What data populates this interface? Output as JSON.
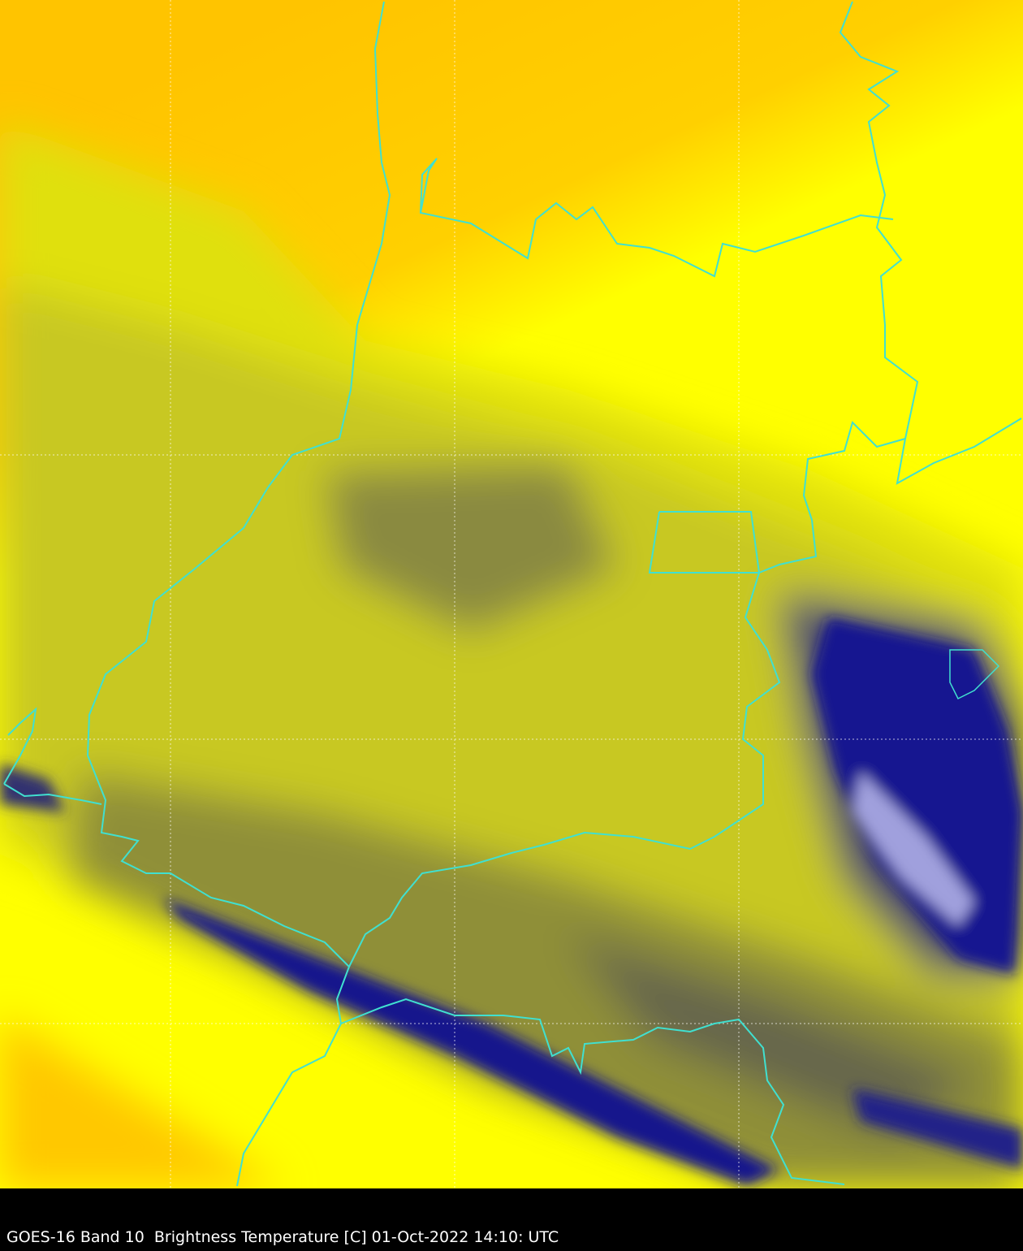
{
  "caption": "GOES-16 Band 10  Brightness Temperature [C] 01-Oct-2022 14:10: UTC",
  "colors": {
    "warm": "#ffc800",
    "mid": "#ffff00",
    "cool": "#c8c820",
    "cold": "#707050",
    "coldest": "#101090",
    "borders": "#40e0d0",
    "grid": "#ffffff",
    "background": "#000000"
  }
}
